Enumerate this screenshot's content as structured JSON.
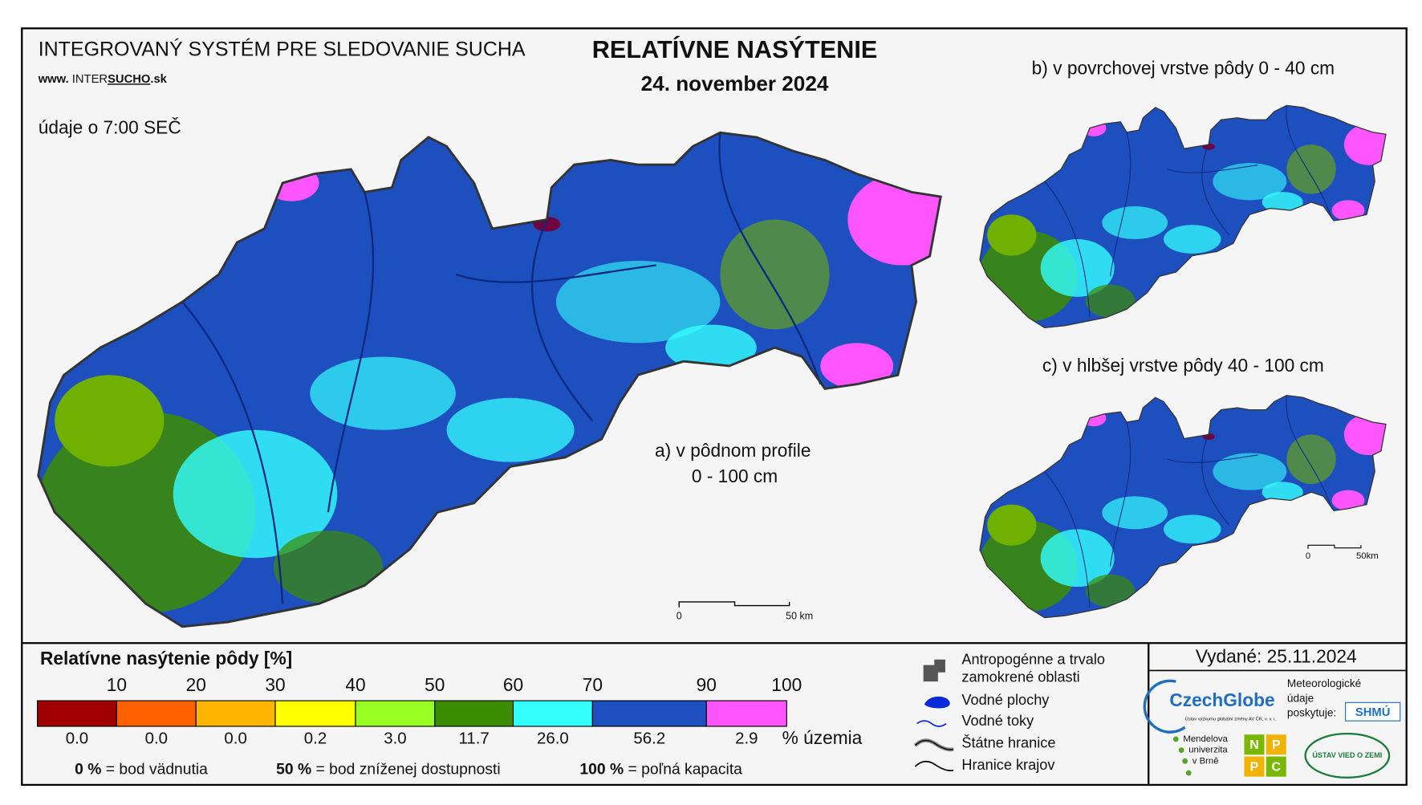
{
  "header": {
    "system": "INTEGROVANÝ SYSTÉM PRE SLEDOVANIE SUCHA",
    "web": [
      "www. ",
      "INTER",
      "SUCHO",
      ".sk"
    ],
    "time_note": "údaje o 7:00 SEČ",
    "title": "RELATÍVNE NASÝTENIE",
    "date": "24. november 2024"
  },
  "maps": {
    "a": {
      "label": "a) v pôdnom profile",
      "depth": "0 - 100 cm",
      "scale_start": "0",
      "scale_end": "50 km"
    },
    "b": {
      "label": "b) v povrchovej vrstve pôdy 0 - 40 cm"
    },
    "c": {
      "label": "c) v hlbšej vrstve pôdy 40 - 100 cm",
      "scale_start": "0",
      "scale_end": "50km"
    }
  },
  "legend": {
    "title": "Relatívne nasýtenie pôdy [%]",
    "unit": "% územia",
    "classes": [
      {
        "upper": "10",
        "color": "#a00000",
        "share": "0.0"
      },
      {
        "upper": "20",
        "color": "#ff6000",
        "share": "0.0"
      },
      {
        "upper": "30",
        "color": "#ffb400",
        "share": "0.0"
      },
      {
        "upper": "40",
        "color": "#ffff00",
        "share": "0.2"
      },
      {
        "upper": "50",
        "color": "#99ff22",
        "share": "3.0"
      },
      {
        "upper": "60",
        "color": "#3c8c00",
        "share": "11.7"
      },
      {
        "upper": "70",
        "color": "#33ffff",
        "share": "26.0"
      },
      {
        "upper": "90",
        "color": "#1e4fbf",
        "share": "56.2"
      },
      {
        "upper": "100",
        "color": "#ff55ff",
        "share": "2.9"
      }
    ],
    "notes": [
      {
        "key": "0 %",
        "text": "= bod vädnutia"
      },
      {
        "key": "50 %",
        "text": "= bod zníženej dostupnosti"
      },
      {
        "key": "100 %",
        "text": "= poľná kapacita"
      }
    ],
    "symbols": [
      "Antropogénne a trvalo",
      "zamokrené oblasti",
      "Vodné plochy",
      "Vodné toky",
      "Štátne hranice",
      "Hranice krajov"
    ]
  },
  "footer": {
    "issued": "Vydané: 25.11.2024",
    "czechglobe": "CzechGlobe",
    "czechglobe_sub": "Ústav výzkumu globální změny AV ČR, v. v. i.",
    "provider": [
      "Meteorologické",
      "údaje",
      "poskytuje:"
    ],
    "shmu": "SHMÚ",
    "mendel": [
      "Mendelova",
      "univerzita",
      "v Brně"
    ],
    "nppc": [
      "N",
      "P",
      "P",
      "C"
    ],
    "uvz": "ÚSTAV VIED O ZEMI"
  }
}
